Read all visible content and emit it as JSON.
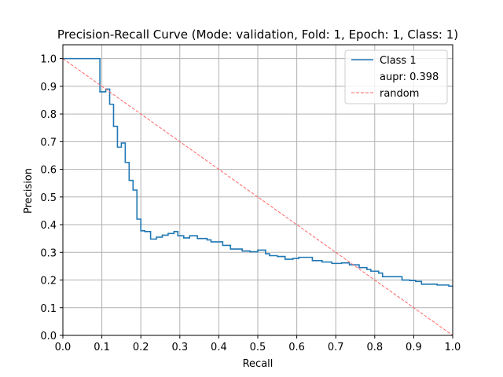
{
  "chart_data": {
    "type": "line",
    "title": "Precision-Recall Curve (Mode: validation, Fold: 1, Epoch: 1, Class: 1)",
    "xlabel": "Recall",
    "ylabel": "Precision",
    "xlim": [
      0,
      1
    ],
    "ylim": [
      0,
      1.05
    ],
    "grid": true,
    "legend_position": "top-right",
    "x_ticks": [
      "0.0",
      "0.1",
      "0.2",
      "0.3",
      "0.4",
      "0.5",
      "0.6",
      "0.7",
      "0.8",
      "0.9",
      "1.0"
    ],
    "y_ticks": [
      "0.0",
      "0.1",
      "0.2",
      "0.3",
      "0.4",
      "0.5",
      "0.6",
      "0.7",
      "0.8",
      "0.9",
      "1.0"
    ],
    "series": [
      {
        "name": "Class 1",
        "color": "#1f77b4",
        "style": "step",
        "points": [
          [
            0.0,
            1.0
          ],
          [
            0.095,
            1.0
          ],
          [
            0.095,
            0.88
          ],
          [
            0.11,
            0.88
          ],
          [
            0.11,
            0.89
          ],
          [
            0.12,
            0.89
          ],
          [
            0.12,
            0.835
          ],
          [
            0.13,
            0.835
          ],
          [
            0.13,
            0.755
          ],
          [
            0.14,
            0.755
          ],
          [
            0.14,
            0.68
          ],
          [
            0.15,
            0.68
          ],
          [
            0.15,
            0.695
          ],
          [
            0.16,
            0.695
          ],
          [
            0.16,
            0.625
          ],
          [
            0.17,
            0.625
          ],
          [
            0.17,
            0.56
          ],
          [
            0.18,
            0.56
          ],
          [
            0.18,
            0.525
          ],
          [
            0.19,
            0.525
          ],
          [
            0.19,
            0.42
          ],
          [
            0.2,
            0.42
          ],
          [
            0.2,
            0.378
          ],
          [
            0.21,
            0.378
          ],
          [
            0.21,
            0.375
          ],
          [
            0.225,
            0.375
          ],
          [
            0.225,
            0.348
          ],
          [
            0.24,
            0.348
          ],
          [
            0.24,
            0.355
          ],
          [
            0.255,
            0.355
          ],
          [
            0.255,
            0.362
          ],
          [
            0.27,
            0.362
          ],
          [
            0.27,
            0.368
          ],
          [
            0.285,
            0.368
          ],
          [
            0.285,
            0.375
          ],
          [
            0.295,
            0.375
          ],
          [
            0.295,
            0.36
          ],
          [
            0.31,
            0.36
          ],
          [
            0.31,
            0.352
          ],
          [
            0.325,
            0.352
          ],
          [
            0.325,
            0.36
          ],
          [
            0.345,
            0.36
          ],
          [
            0.345,
            0.35
          ],
          [
            0.37,
            0.35
          ],
          [
            0.37,
            0.345
          ],
          [
            0.38,
            0.345
          ],
          [
            0.38,
            0.338
          ],
          [
            0.41,
            0.338
          ],
          [
            0.41,
            0.325
          ],
          [
            0.43,
            0.325
          ],
          [
            0.43,
            0.312
          ],
          [
            0.46,
            0.312
          ],
          [
            0.46,
            0.305
          ],
          [
            0.48,
            0.305
          ],
          [
            0.48,
            0.302
          ],
          [
            0.5,
            0.302
          ],
          [
            0.5,
            0.308
          ],
          [
            0.52,
            0.308
          ],
          [
            0.52,
            0.295
          ],
          [
            0.53,
            0.295
          ],
          [
            0.53,
            0.288
          ],
          [
            0.55,
            0.288
          ],
          [
            0.55,
            0.285
          ],
          [
            0.57,
            0.285
          ],
          [
            0.57,
            0.275
          ],
          [
            0.59,
            0.275
          ],
          [
            0.59,
            0.278
          ],
          [
            0.605,
            0.278
          ],
          [
            0.605,
            0.282
          ],
          [
            0.64,
            0.282
          ],
          [
            0.64,
            0.27
          ],
          [
            0.665,
            0.27
          ],
          [
            0.665,
            0.265
          ],
          [
            0.69,
            0.265
          ],
          [
            0.69,
            0.26
          ],
          [
            0.715,
            0.26
          ],
          [
            0.715,
            0.262
          ],
          [
            0.735,
            0.262
          ],
          [
            0.735,
            0.255
          ],
          [
            0.76,
            0.255
          ],
          [
            0.76,
            0.245
          ],
          [
            0.78,
            0.245
          ],
          [
            0.78,
            0.238
          ],
          [
            0.79,
            0.238
          ],
          [
            0.79,
            0.232
          ],
          [
            0.81,
            0.232
          ],
          [
            0.81,
            0.225
          ],
          [
            0.82,
            0.225
          ],
          [
            0.82,
            0.212
          ],
          [
            0.87,
            0.212
          ],
          [
            0.87,
            0.2
          ],
          [
            0.89,
            0.2
          ],
          [
            0.89,
            0.198
          ],
          [
            0.905,
            0.198
          ],
          [
            0.905,
            0.195
          ],
          [
            0.92,
            0.195
          ],
          [
            0.92,
            0.185
          ],
          [
            0.96,
            0.185
          ],
          [
            0.96,
            0.182
          ],
          [
            0.99,
            0.182
          ],
          [
            0.99,
            0.178
          ],
          [
            1.0,
            0.178
          ]
        ]
      },
      {
        "name": "random",
        "color": "#ff6666",
        "style": "dashed",
        "points": [
          [
            0.0,
            1.0
          ],
          [
            1.0,
            0.0
          ]
        ]
      }
    ],
    "legend": {
      "entries": [
        {
          "label": "Class 1",
          "color": "#1f77b4",
          "style": "solid"
        },
        {
          "label": "aupr: 0.398",
          "color": "",
          "style": "none"
        },
        {
          "label": "random",
          "color": "#ff6666",
          "style": "dashed"
        }
      ]
    }
  }
}
